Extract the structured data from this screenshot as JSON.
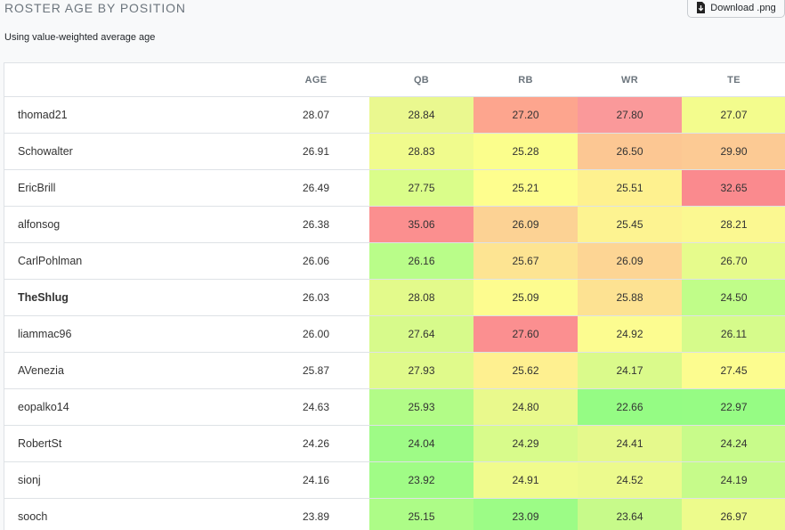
{
  "title": "ROSTER AGE BY POSITION",
  "subtitle": "Using value-weighted average age",
  "download_label": "Download .png",
  "columns": [
    "",
    "AGE",
    "QB",
    "RB",
    "WR",
    "TE"
  ],
  "rows": [
    {
      "name": "thomad21",
      "bold": false,
      "age": "28.07",
      "qb": "28.84",
      "rb": "27.20",
      "wr": "27.80",
      "te": "27.07",
      "colors": {
        "qb": "#eaf88f",
        "rb": "#fda58e",
        "wr": "#fa999a",
        "te": "#f3fc8d"
      }
    },
    {
      "name": "Schowalter",
      "bold": false,
      "age": "26.91",
      "qb": "28.83",
      "rb": "25.28",
      "wr": "26.50",
      "te": "29.90",
      "colors": {
        "qb": "#f0fb8d",
        "rb": "#fbfe8c",
        "wr": "#fcc793",
        "te": "#fcca94"
      }
    },
    {
      "name": "EricBrill",
      "bold": false,
      "age": "26.49",
      "qb": "27.75",
      "rb": "25.21",
      "wr": "25.51",
      "te": "32.65",
      "colors": {
        "qb": "#dafd8a",
        "rb": "#fefe8e",
        "wr": "#fef18f",
        "te": "#fa8a8e"
      }
    },
    {
      "name": "alfonsog",
      "bold": false,
      "age": "26.38",
      "qb": "35.06",
      "rb": "26.09",
      "wr": "25.45",
      "te": "28.21",
      "colors": {
        "qb": "#fb8f8f",
        "rb": "#fcd294",
        "wr": "#fdf391",
        "te": "#fbf891"
      }
    },
    {
      "name": "CarlPohlman",
      "bold": false,
      "age": "26.06",
      "qb": "26.16",
      "rb": "25.67",
      "wr": "26.09",
      "te": "26.70",
      "colors": {
        "qb": "#b9fd89",
        "rb": "#fde492",
        "wr": "#fdd594",
        "te": "#e6fb8c"
      }
    },
    {
      "name": "TheShlug",
      "bold": true,
      "age": "26.03",
      "qb": "28.08",
      "rb": "25.09",
      "wr": "25.88",
      "te": "24.50",
      "colors": {
        "qb": "#e3fa8b",
        "rb": "#fdfc8f",
        "wr": "#fde292",
        "te": "#c0fd89"
      }
    },
    {
      "name": "liammac96",
      "bold": false,
      "age": "26.00",
      "qb": "27.64",
      "rb": "27.60",
      "wr": "24.92",
      "te": "26.11",
      "colors": {
        "qb": "#d7fa8b",
        "rb": "#fb8f90",
        "wr": "#fcfc90",
        "te": "#d6fb8b"
      }
    },
    {
      "name": "AVenezia",
      "bold": false,
      "age": "25.87",
      "qb": "27.93",
      "rb": "25.62",
      "wr": "24.17",
      "te": "27.45",
      "colors": {
        "qb": "#e0fa8b",
        "rb": "#fef090",
        "wr": "#dafa8b",
        "te": "#fcfc8f"
      }
    },
    {
      "name": "eopalko14",
      "bold": false,
      "age": "24.63",
      "qb": "25.93",
      "rb": "24.80",
      "wr": "22.66",
      "te": "22.97",
      "colors": {
        "qb": "#b2fc87",
        "rb": "#e9f98c",
        "wr": "#95fc84",
        "te": "#96fc84"
      }
    },
    {
      "name": "RobertSt",
      "bold": false,
      "age": "24.26",
      "qb": "24.04",
      "rb": "24.29",
      "wr": "24.41",
      "te": "24.24",
      "colors": {
        "qb": "#9efb86",
        "rb": "#d8fb8b",
        "wr": "#e5f98c",
        "te": "#c8fb8a"
      }
    },
    {
      "name": "sionj",
      "bold": false,
      "age": "24.16",
      "qb": "23.92",
      "rb": "24.91",
      "wr": "24.52",
      "te": "24.19",
      "colors": {
        "qb": "#a0fc86",
        "rb": "#f0fb8d",
        "wr": "#ecfa8d",
        "te": "#c6fb8a"
      }
    },
    {
      "name": "sooch",
      "bold": false,
      "age": "23.89",
      "qb": "25.15",
      "rb": "23.09",
      "wr": "23.64",
      "te": "26.97",
      "colors": {
        "qb": "#adfc87",
        "rb": "#9cfc86",
        "wr": "#c7fa8a",
        "te": "#edfb8c"
      }
    }
  ]
}
